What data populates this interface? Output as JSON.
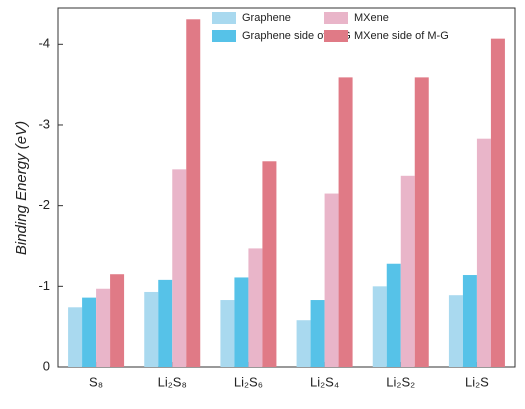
{
  "chart_data": {
    "type": "bar",
    "ylabel": "Binding Energy (eV)",
    "categories": [
      "S₈",
      "Li₂S₈",
      "Li₂S₆",
      "Li₂S₄",
      "Li₂S₂",
      "Li₂S"
    ],
    "series": [
      {
        "name": "Graphene",
        "color": "#a9d9ef",
        "values": [
          -0.74,
          -0.93,
          -0.83,
          -0.58,
          -1.0,
          -0.89
        ]
      },
      {
        "name": "Graphene side of M-G",
        "color": "#56c2e8",
        "values": [
          -0.86,
          -1.08,
          -1.11,
          -0.83,
          -1.28,
          -1.14
        ]
      },
      {
        "name": "MXene",
        "color": "#e9b5c9",
        "values": [
          -0.97,
          -2.45,
          -1.47,
          -2.15,
          -2.37,
          -2.83
        ]
      },
      {
        "name": "MXene side of M-G",
        "color": "#e07a86",
        "values": [
          -1.15,
          -4.31,
          -2.55,
          -3.59,
          -3.59,
          -4.07
        ]
      }
    ],
    "ylim": [
      0,
      -4.45
    ],
    "yticks": [
      0,
      -1,
      -2,
      -3,
      -4
    ],
    "legend": "top"
  }
}
